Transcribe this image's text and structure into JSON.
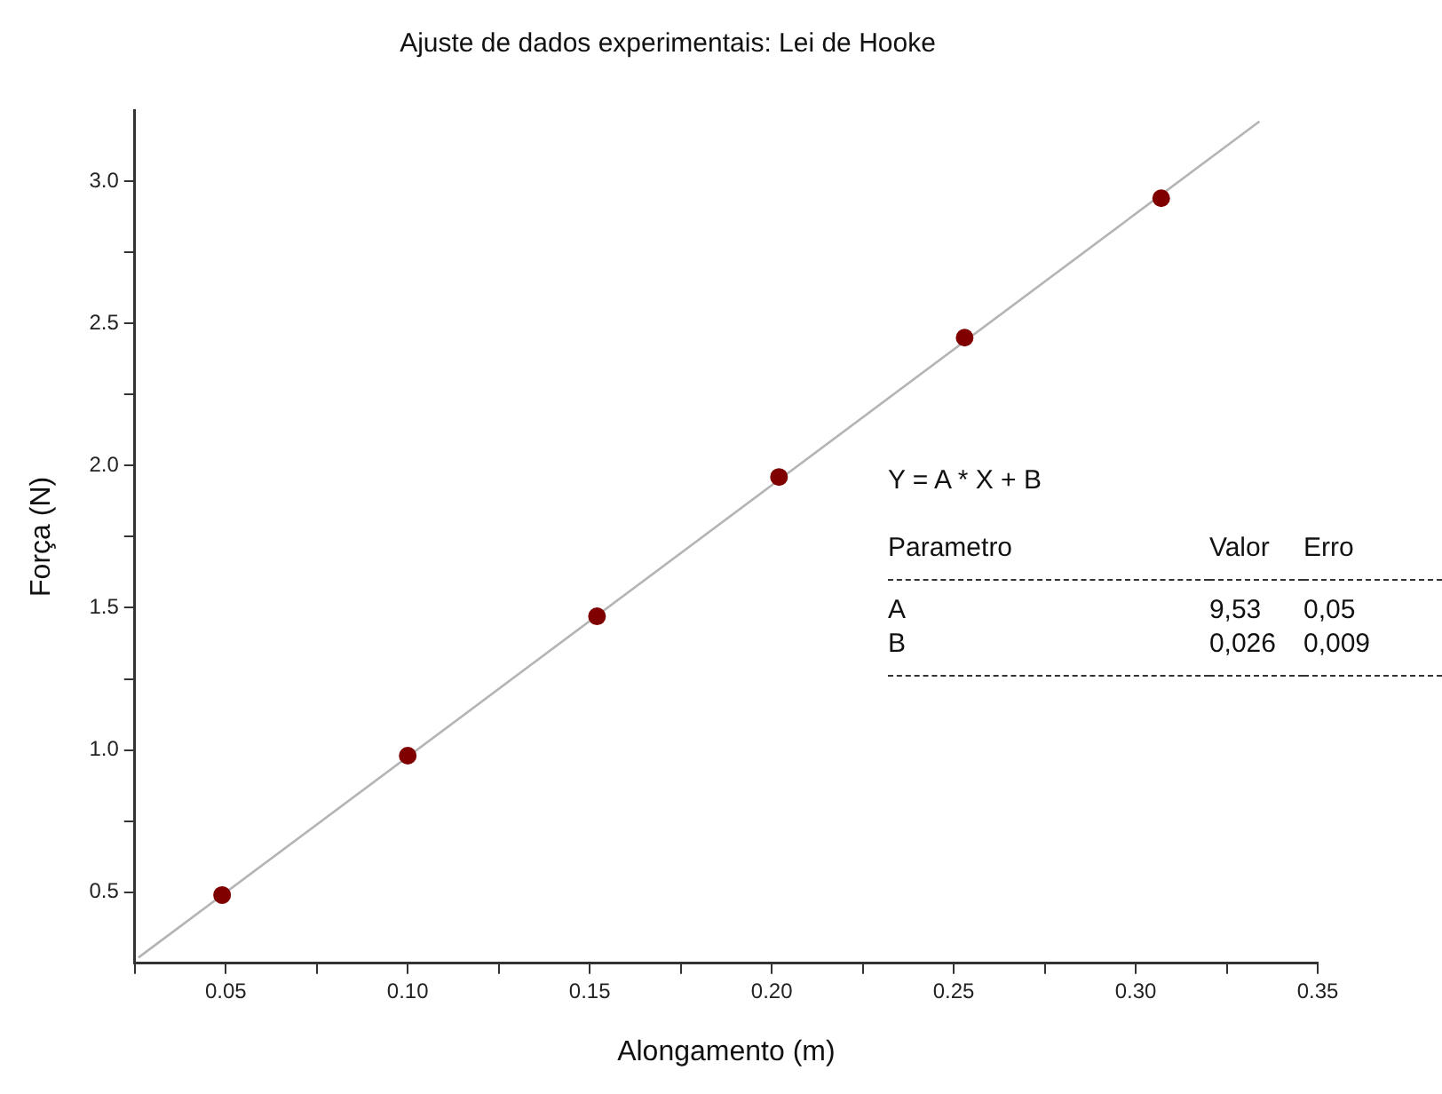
{
  "chart_data": {
    "type": "scatter",
    "title": "Ajuste de dados experimentais: Lei de Hooke",
    "xlabel": "Alongamento (m)",
    "ylabel": "Força (N)",
    "x": [
      0.049,
      0.1,
      0.152,
      0.202,
      0.253,
      0.307
    ],
    "series": [
      {
        "color": "#800000",
        "marker": "circle",
        "values": [
          0.49,
          0.98,
          1.47,
          1.96,
          2.45,
          2.94
        ]
      },
      {
        "type": "line",
        "color": "#b4b4b4",
        "marker": "none",
        "line_style": "solid",
        "x": [
          0.026,
          0.334
        ],
        "values": [
          0.27,
          3.21
        ]
      }
    ],
    "xlim": [
      0.025,
      0.35
    ],
    "ylim": [
      0.25,
      3.25
    ],
    "xticks": [
      {
        "value": 0.025,
        "label": null
      },
      0.05,
      {
        "value": 0.075,
        "label": null
      },
      {
        "value": 0.1,
        "label": "0.10"
      },
      {
        "value": 0.125,
        "label": null
      },
      0.15,
      {
        "value": 0.175,
        "label": null
      },
      {
        "value": 0.2,
        "label": "0.20"
      },
      {
        "value": 0.225,
        "label": null
      },
      0.25,
      {
        "value": 0.275,
        "label": null
      },
      {
        "value": 0.3,
        "label": "0.30"
      },
      {
        "value": 0.325,
        "label": null
      },
      0.35
    ],
    "yticks": [
      0.5,
      {
        "value": 0.75,
        "label": null
      },
      {
        "value": 1,
        "label": "1.0"
      },
      {
        "value": 1.25,
        "label": null
      },
      1.5,
      {
        "value": 1.75,
        "label": null
      },
      {
        "value": 2,
        "label": "2.0"
      },
      {
        "value": 2.25,
        "label": null
      },
      2.5,
      {
        "value": 2.75,
        "label": null
      },
      {
        "value": 3,
        "label": "3.0"
      }
    ],
    "grid": false,
    "legend": false,
    "annotations": [
      "Y = A * X + B",
      "Parametro",
      "Valor",
      "Erro",
      "A",
      "9,53",
      "0,05",
      "B",
      "0,026",
      "0,009"
    ]
  }
}
